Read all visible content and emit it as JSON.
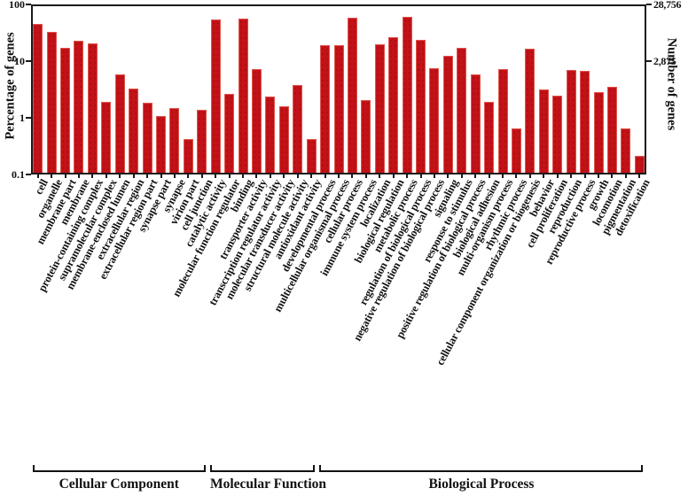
{
  "chart_data": {
    "type": "bar",
    "title": "",
    "ylabel_left": "Percentage of genes",
    "ylabel_right": "Number of genes",
    "y_scale": "log",
    "ylim": [
      0.1,
      100
    ],
    "grid": false,
    "bar_color": "#c31217",
    "left_ticks": [
      "100",
      "10",
      "1",
      "0.1"
    ],
    "left_tick_values": [
      100,
      10,
      1,
      0.1
    ],
    "right_ticks": [
      {
        "label": "28,756",
        "percent": 100
      },
      {
        "label": "2,875",
        "percent": 10
      }
    ],
    "groups": [
      {
        "name": "Cellular Component",
        "bars": [
          {
            "label": "cell",
            "percent": 43
          },
          {
            "label": "organelle",
            "percent": 31
          },
          {
            "label": "membrane part",
            "percent": 16
          },
          {
            "label": "membrane",
            "percent": 21
          },
          {
            "label": "protein-containing complex",
            "percent": 19
          },
          {
            "label": "supramolecular complex",
            "percent": 1.8
          },
          {
            "label": "membrane-enclosed lumen",
            "percent": 5.4
          },
          {
            "label": "extracellular region",
            "percent": 3.1
          },
          {
            "label": "extracellular region part",
            "percent": 1.7
          },
          {
            "label": "synapse part",
            "percent": 1.0
          },
          {
            "label": "synapse",
            "percent": 1.4
          },
          {
            "label": "virion part",
            "percent": 0.4
          },
          {
            "label": "cell junction",
            "percent": 1.3
          }
        ]
      },
      {
        "name": "Molecular Function",
        "bars": [
          {
            "label": "catalytic activity",
            "percent": 50
          },
          {
            "label": "molecular function regulator",
            "percent": 2.5
          },
          {
            "label": "binding",
            "percent": 52
          },
          {
            "label": "transporter activity",
            "percent": 6.8
          },
          {
            "label": "transcription regulator activity",
            "percent": 2.2
          },
          {
            "label": "molecular transducer activity",
            "percent": 1.5
          },
          {
            "label": "structural molecule activity",
            "percent": 3.5
          },
          {
            "label": "antioxidant activity",
            "percent": 0.4
          }
        ]
      },
      {
        "name": "Biological Process",
        "bars": [
          {
            "label": "developmental process",
            "percent": 17.5
          },
          {
            "label": "multicellular organismal process",
            "percent": 18
          },
          {
            "label": "cellular process",
            "percent": 55
          },
          {
            "label": "immune system process",
            "percent": 1.9
          },
          {
            "label": "localization",
            "percent": 18.5
          },
          {
            "label": "biological regulation",
            "percent": 25
          },
          {
            "label": "metabolic process",
            "percent": 57
          },
          {
            "label": "regulation of biological process",
            "percent": 22
          },
          {
            "label": "negative regulation of biological process",
            "percent": 7
          },
          {
            "label": "signaling",
            "percent": 11.5
          },
          {
            "label": "response to stimulus",
            "percent": 16
          },
          {
            "label": "positive regulation of biological process",
            "percent": 5.5
          },
          {
            "label": "biological adhesion",
            "percent": 1.8
          },
          {
            "label": "multi-organism process",
            "percent": 6.8
          },
          {
            "label": "rhythmic process",
            "percent": 0.6
          },
          {
            "label": "cellular component organization or biogenesis",
            "percent": 15.7
          },
          {
            "label": "behavior",
            "percent": 2.9
          },
          {
            "label": "cell proliferation",
            "percent": 2.3
          },
          {
            "label": "reproduction",
            "percent": 6.4
          },
          {
            "label": "reproductive process",
            "percent": 6.3
          },
          {
            "label": "growth",
            "percent": 2.6
          },
          {
            "label": "locomotion",
            "percent": 3.3
          },
          {
            "label": "pigmentation",
            "percent": 0.6
          },
          {
            "label": "detoxification",
            "percent": 0.2
          }
        ]
      }
    ]
  }
}
